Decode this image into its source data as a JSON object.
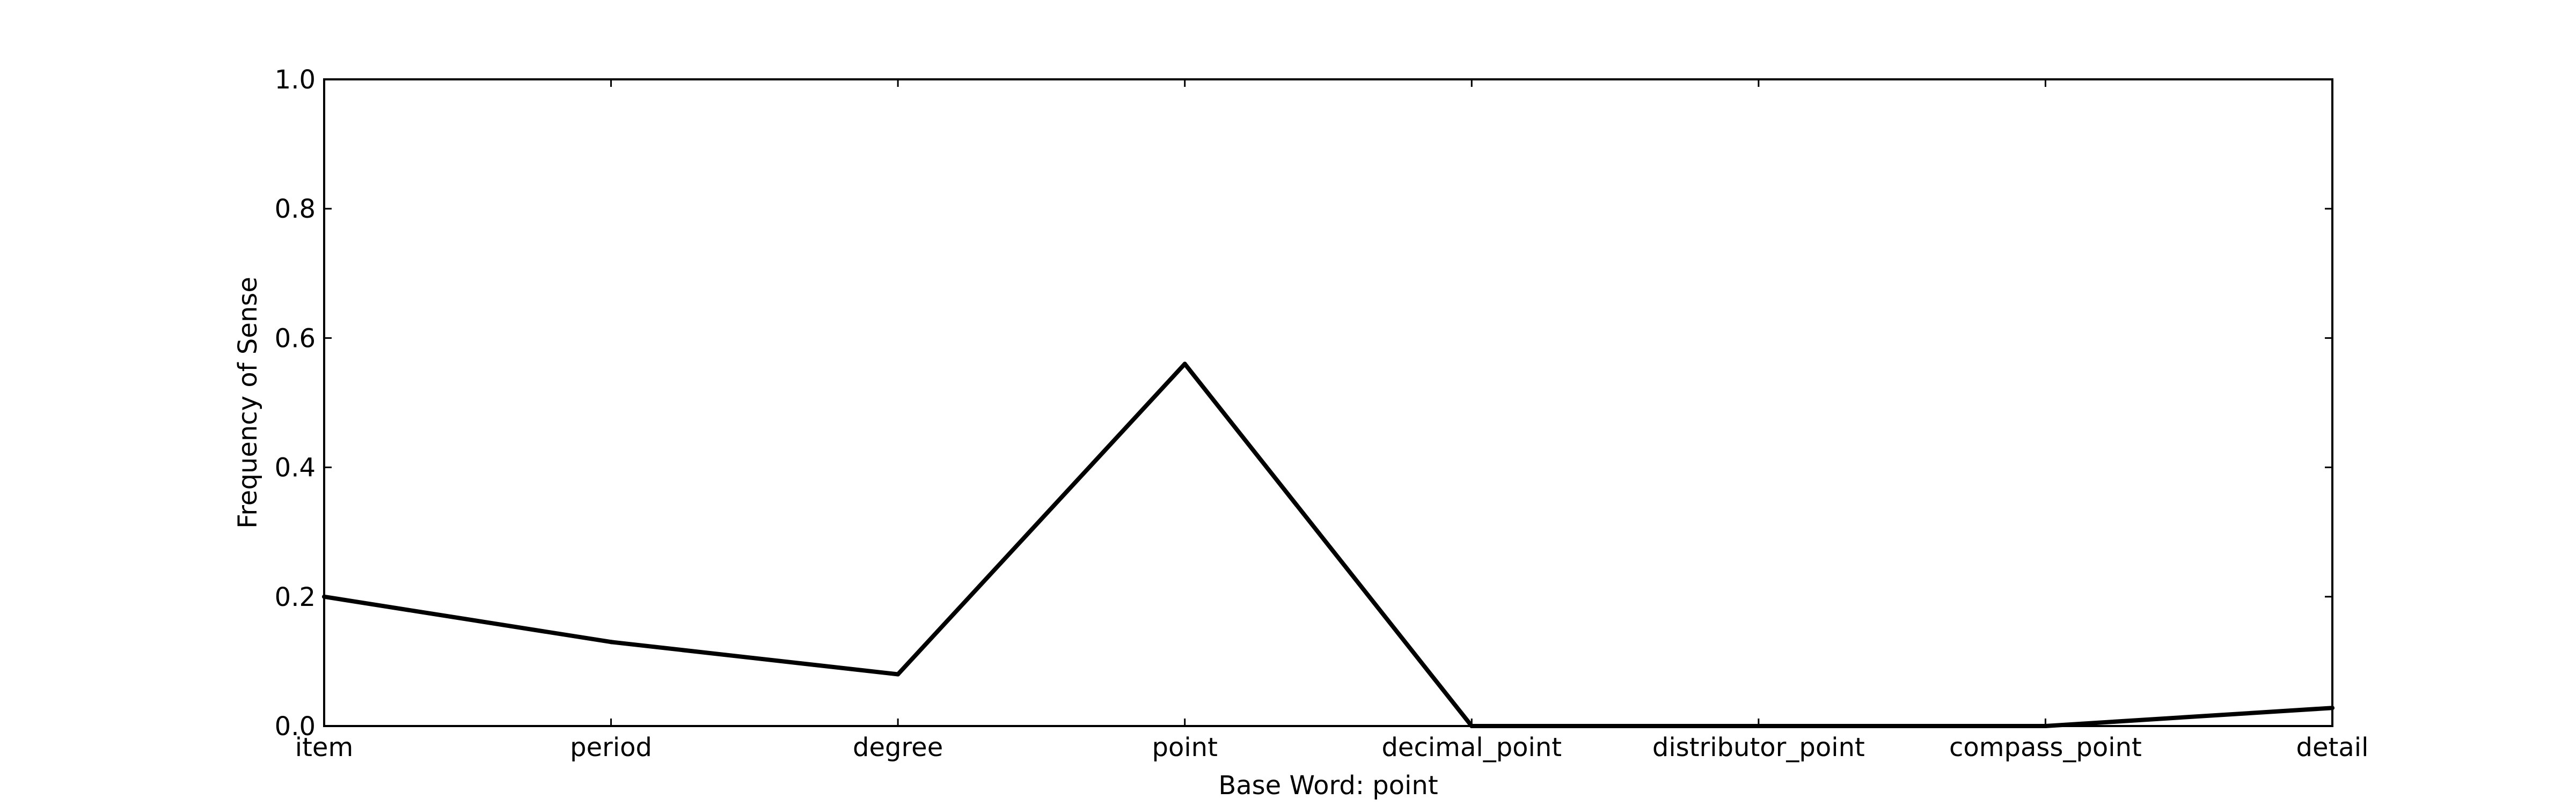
{
  "chart_data": {
    "type": "line",
    "categories": [
      "item",
      "period",
      "degree",
      "point",
      "decimal_point",
      "distributor_point",
      "compass_point",
      "detail"
    ],
    "series": [
      {
        "values": [
          0.2,
          0.13,
          0.08,
          0.56,
          0.0,
          0.0,
          0.0,
          0.028
        ]
      }
    ],
    "xlabel": "Base Word: point",
    "ylabel": "Frequency of Sense",
    "ylim": [
      0.0,
      1.0
    ],
    "yticks": [
      "0.0",
      "0.2",
      "0.4",
      "0.6",
      "0.8",
      "1.0"
    ],
    "grid": false,
    "line_color": "#000000"
  }
}
